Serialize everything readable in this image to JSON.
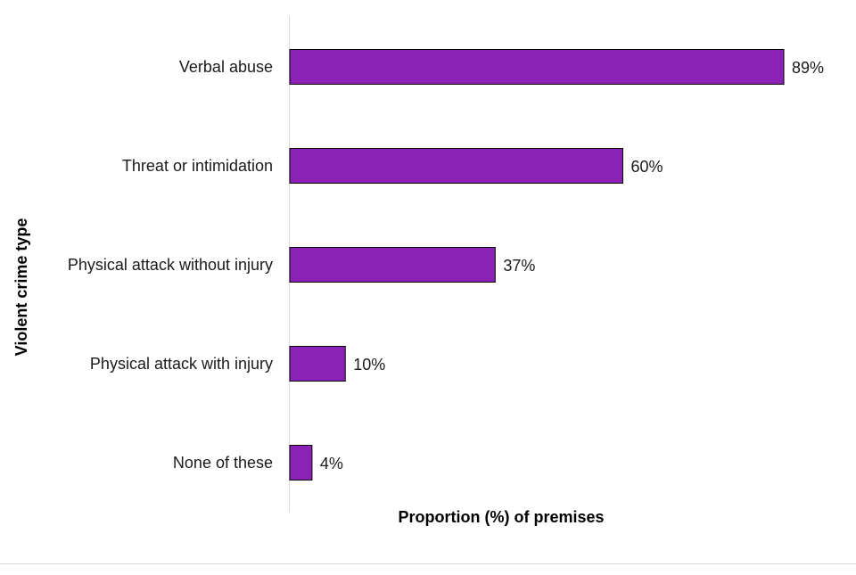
{
  "chart_data": {
    "type": "bar",
    "orientation": "horizontal",
    "categories": [
      "Verbal abuse",
      "Threat or intimidation",
      "Physical attack without injury",
      "Physical attack with injury",
      "None of these"
    ],
    "values": [
      89,
      60,
      37,
      10,
      4
    ],
    "value_labels": [
      "89%",
      "60%",
      "37%",
      "10%",
      "4%"
    ],
    "unit": "%",
    "title": "",
    "xlabel": "Proportion (%) of premises",
    "ylabel": "Violent crime type",
    "xlim": [
      0,
      100
    ],
    "grid": false,
    "legend": "none",
    "bar_color": "#8b22b5",
    "bar_edge_color": "#000000"
  }
}
